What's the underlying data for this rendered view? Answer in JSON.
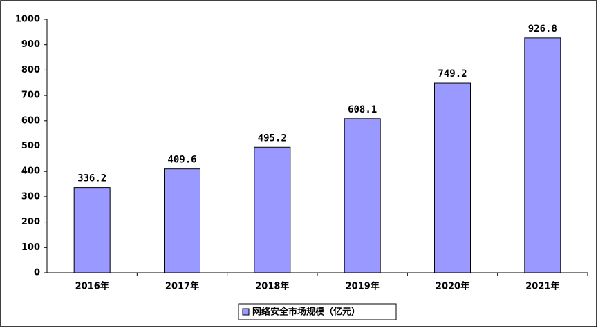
{
  "chart_data": {
    "type": "bar",
    "categories": [
      "2016年",
      "2017年",
      "2018年",
      "2019年",
      "2020年",
      "2021年"
    ],
    "series": [
      {
        "name": "网络安全市场规模（亿元）",
        "color": "#9999ff",
        "values": [
          336.2,
          409.6,
          495.2,
          608.1,
          749.2,
          926.8
        ]
      }
    ],
    "ylim": [
      0,
      1000
    ],
    "yticks": [
      0,
      100,
      200,
      300,
      400,
      500,
      600,
      700,
      800,
      900,
      1000
    ],
    "grid": false,
    "legend": "bottom"
  }
}
